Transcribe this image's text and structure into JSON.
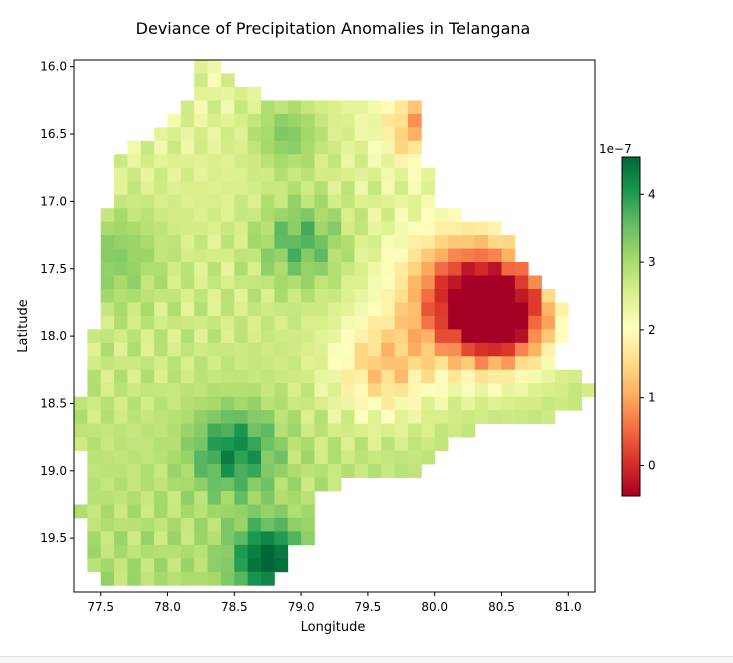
{
  "chart_data": {
    "type": "heatmap",
    "title": "Deviance of Precipitation Anomalies in Telangana",
    "xlabel": "Longitude",
    "ylabel": "Latitude",
    "xlim": [
      77.3,
      81.2
    ],
    "ylim": [
      15.95,
      19.9
    ],
    "y_inverted": true,
    "grid": false,
    "x_ticks": [
      "77.5",
      "78.0",
      "78.5",
      "79.0",
      "79.5",
      "80.0",
      "80.5",
      "81.0"
    ],
    "y_ticks": [
      "16.0",
      "16.5",
      "17.0",
      "17.5",
      "18.0",
      "18.5",
      "19.0",
      "19.5"
    ],
    "colormap": "RdYlGn",
    "colorbar": {
      "range": [
        -0.45,
        4.55
      ],
      "ticks": [
        "0",
        "1",
        "2",
        "3",
        "4"
      ],
      "offset_label": "1e−7",
      "stops": [
        "#a50026",
        "#d73027",
        "#f46d43",
        "#fdae61",
        "#fee08b",
        "#ffffbf",
        "#d9ef8b",
        "#a6d96a",
        "#66bd63",
        "#1a9850",
        "#006837"
      ]
    },
    "grid_cells": {
      "lon_start": 77.3,
      "lat_start": 15.95,
      "cell_size": 0.05,
      "cols": 78,
      "rows": 79,
      "region_note": "precipitation anomaly deviance over Telangana (×1e-7)",
      "hotspots": [
        {
          "lon": 80.5,
          "lat": 17.85,
          "value": -0.4,
          "spread": 0.35
        },
        {
          "lon": 80.2,
          "lat": 17.7,
          "value": 0.3,
          "spread": 0.45
        },
        {
          "lon": 79.9,
          "lat": 16.45,
          "value": 1.1,
          "spread": 0.25
        },
        {
          "lon": 79.6,
          "lat": 18.25,
          "value": 1.3,
          "spread": 0.35
        },
        {
          "lon": 78.75,
          "lat": 19.65,
          "value": 4.4,
          "spread": 0.25
        },
        {
          "lon": 78.5,
          "lat": 18.85,
          "value": 4.0,
          "spread": 0.3
        },
        {
          "lon": 79.0,
          "lat": 17.3,
          "value": 3.7,
          "spread": 0.3
        },
        {
          "lon": 78.9,
          "lat": 16.5,
          "value": 3.5,
          "spread": 0.25
        },
        {
          "lon": 77.6,
          "lat": 17.4,
          "value": 3.3,
          "spread": 0.35
        }
      ],
      "base_value": 2.6
    }
  }
}
